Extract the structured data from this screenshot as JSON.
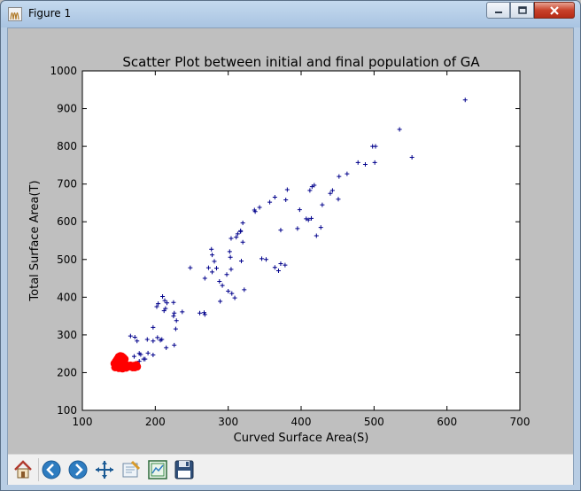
{
  "window": {
    "title": "Figure 1"
  },
  "toolbar": {
    "buttons": [
      {
        "name": "home-button",
        "icon": "home-icon"
      },
      {
        "name": "back-button",
        "icon": "back-arrow-icon"
      },
      {
        "name": "forward-button",
        "icon": "forward-arrow-icon"
      },
      {
        "name": "pan-button",
        "icon": "pan-move-icon"
      },
      {
        "name": "zoom-button",
        "icon": "zoom-rect-icon"
      },
      {
        "name": "configure-subplots-button",
        "icon": "subplots-icon"
      },
      {
        "name": "save-button",
        "icon": "floppy-disk-icon"
      }
    ]
  },
  "chart_data": {
    "type": "scatter",
    "title": "Scatter Plot between initial and final population of GA",
    "xlabel": "Curved Surface Area(S)",
    "ylabel": "Total Surface Area(T)",
    "xlim": [
      100,
      700
    ],
    "ylim": [
      100,
      1000
    ],
    "xticks": [
      100,
      200,
      300,
      400,
      500,
      600,
      700
    ],
    "yticks": [
      100,
      200,
      300,
      400,
      500,
      600,
      700,
      800,
      900,
      1000
    ],
    "grid": false,
    "legend": "none",
    "series": [
      {
        "marker": "plus",
        "color": "#00008b",
        "x": [
          625,
          535,
          552,
          498,
          502,
          478,
          488,
          463,
          501,
          452,
          440,
          418,
          415,
          412,
          443,
          451,
          429,
          407,
          398,
          410,
          414,
          427,
          421,
          381,
          372,
          364,
          379,
          357,
          343,
          336,
          337,
          320,
          317,
          395,
          364,
          372,
          378,
          346,
          352,
          369,
          304,
          311,
          317,
          313,
          302,
          320,
          303,
          277,
          278,
          281,
          273,
          278,
          284,
          304,
          318,
          298,
          292,
          289,
          288,
          268,
          309,
          305,
          300,
          322,
          248,
          268,
          261,
          267,
          210,
          213,
          216,
          225,
          214,
          237,
          212,
          202,
          204,
          203,
          207,
          209,
          226,
          225,
          229,
          228,
          197,
          197,
          189,
          190,
          166,
          172,
          175,
          178,
          180,
          186,
          197,
          184,
          178,
          171,
          226,
          215
        ],
        "y": [
          923,
          845,
          771,
          800,
          800,
          757,
          752,
          727,
          757,
          720,
          675,
          697,
          693,
          683,
          683,
          660,
          645,
          608,
          632,
          605,
          609,
          585,
          563,
          685,
          578,
          665,
          658,
          652,
          638,
          631,
          627,
          597,
          576,
          582,
          479,
          489,
          485,
          502,
          500,
          470,
          556,
          559,
          574,
          568,
          521,
          546,
          506,
          527,
          512,
          495,
          478,
          467,
          477,
          474,
          496,
          460,
          431,
          389,
          442,
          450,
          398,
          410,
          416,
          420,
          478,
          354,
          358,
          359,
          402,
          391,
          385,
          386,
          370,
          361,
          364,
          375,
          383,
          293,
          286,
          288,
          358,
          350,
          338,
          316,
          320,
          284,
          288,
          252,
          297,
          294,
          284,
          251,
          248,
          236,
          247,
          236,
          230,
          243,
          273,
          266
        ]
      },
      {
        "marker": "dot",
        "color": "#ff0000",
        "x": [
          146,
          148,
          150,
          152,
          154,
          156,
          158,
          147,
          149,
          151,
          153,
          155,
          157,
          159,
          161,
          145,
          150,
          155,
          160,
          163,
          166,
          169,
          172,
          175,
          148,
          153,
          158,
          144,
          170,
          174
        ],
        "y": [
          230,
          236,
          242,
          244,
          243,
          240,
          236,
          222,
          226,
          228,
          230,
          229,
          226,
          222,
          219,
          214,
          212,
          211,
          213,
          216,
          219,
          214,
          214,
          216,
          218,
          216,
          218,
          224,
          218,
          220
        ]
      }
    ]
  }
}
